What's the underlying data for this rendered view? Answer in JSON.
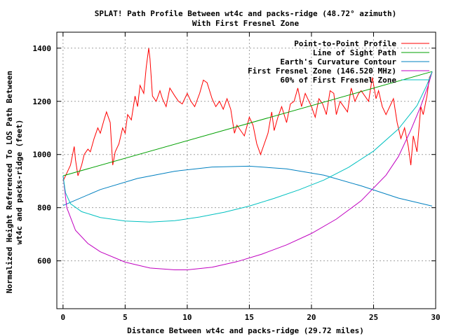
{
  "chart_data": {
    "type": "line",
    "title": "SPLAT! Path Profile Between wt4c and packs-ridge (48.72° azimuth)",
    "subtitle": "With First Fresnel Zone",
    "xlabel": "Distance Between wt4c and packs-ridge (29.72 miles)",
    "ylabel_line1": "Normalized Height Referenced To LOS Path Between",
    "ylabel_line2": "wt4c and packs-ridge (feet)",
    "xlim": [
      -0.5,
      30
    ],
    "ylim": [
      420,
      1460
    ],
    "x_ticks": [
      0,
      5,
      10,
      15,
      20,
      25,
      30
    ],
    "y_ticks": [
      600,
      800,
      1000,
      1200,
      1400
    ],
    "grid": true,
    "legend_position": "top-right",
    "series": [
      {
        "name": "Point-to-Point Profile",
        "color": "#ff0000",
        "x": [
          0,
          0.3,
          0.6,
          0.9,
          1.0,
          1.2,
          1.5,
          1.7,
          2.0,
          2.2,
          2.5,
          2.8,
          3.0,
          3.3,
          3.5,
          3.8,
          4.0,
          4.2,
          4.5,
          4.8,
          5.0,
          5.2,
          5.5,
          5.8,
          6.0,
          6.2,
          6.5,
          6.7,
          6.9,
          7.0,
          7.2,
          7.5,
          7.8,
          8.0,
          8.3,
          8.6,
          9.0,
          9.3,
          9.6,
          10.0,
          10.3,
          10.6,
          11.0,
          11.3,
          11.6,
          12.0,
          12.3,
          12.6,
          12.9,
          13.2,
          13.5,
          13.8,
          14.0,
          14.3,
          14.6,
          15.0,
          15.3,
          15.6,
          15.9,
          16.2,
          16.5,
          16.8,
          17.0,
          17.3,
          17.6,
          18.0,
          18.3,
          18.6,
          18.9,
          19.2,
          19.5,
          19.8,
          20.0,
          20.3,
          20.6,
          20.9,
          21.2,
          21.5,
          21.8,
          22.0,
          22.3,
          22.6,
          22.9,
          23.2,
          23.5,
          23.8,
          24.0,
          24.3,
          24.6,
          24.9,
          25.2,
          25.4,
          25.7,
          26.0,
          26.3,
          26.6,
          26.9,
          27.2,
          27.5,
          27.8,
          28.0,
          28.2,
          28.5,
          28.8,
          29.0,
          29.3,
          29.5,
          29.72
        ],
        "y": [
          900,
          930,
          960,
          1030,
          980,
          920,
          960,
          1000,
          1020,
          1010,
          1060,
          1100,
          1080,
          1130,
          1160,
          1120,
          960,
          1010,
          1040,
          1100,
          1080,
          1150,
          1130,
          1220,
          1180,
          1260,
          1230,
          1330,
          1400,
          1360,
          1220,
          1200,
          1240,
          1210,
          1180,
          1250,
          1220,
          1200,
          1190,
          1230,
          1200,
          1180,
          1230,
          1280,
          1270,
          1210,
          1180,
          1200,
          1170,
          1210,
          1170,
          1080,
          1110,
          1090,
          1070,
          1140,
          1110,
          1040,
          1000,
          1040,
          1080,
          1160,
          1090,
          1140,
          1180,
          1120,
          1190,
          1200,
          1250,
          1180,
          1230,
          1200,
          1180,
          1140,
          1210,
          1190,
          1150,
          1240,
          1230,
          1150,
          1200,
          1180,
          1160,
          1250,
          1200,
          1230,
          1240,
          1220,
          1200,
          1290,
          1210,
          1240,
          1180,
          1150,
          1180,
          1210,
          1120,
          1060,
          1100,
          1030,
          960,
          1070,
          1010,
          1180,
          1150,
          1220,
          1290,
          1310
        ]
      },
      {
        "name": "Line of Sight Path",
        "color": "#00a000",
        "x": [
          0,
          29.72
        ],
        "y": [
          920,
          1312
        ]
      },
      {
        "name": "Earth's Curvature Contour",
        "color": "#0080c0",
        "x": [
          0,
          3,
          6,
          9,
          12,
          15,
          18,
          21,
          24,
          27,
          29.72
        ],
        "y": [
          808,
          868,
          910,
          937,
          953,
          956,
          946,
          922,
          882,
          836,
          806
        ]
      },
      {
        "name": "First Fresnel Zone (146.520 MHz)",
        "color": "#c000c0",
        "x": [
          0,
          0.3,
          1,
          2,
          3,
          5,
          7,
          9,
          10,
          12,
          14,
          16,
          18,
          20,
          22,
          24,
          26,
          27,
          28,
          28.8,
          29.4,
          29.72
        ],
        "y": [
          920,
          800,
          715,
          665,
          634,
          595,
          573,
          566,
          566,
          576,
          597,
          625,
          660,
          703,
          757,
          826,
          922,
          992,
          1092,
          1182,
          1260,
          1312
        ]
      },
      {
        "name": "60% of First Fresnel Zone",
        "color": "#00c0c0",
        "x": [
          0,
          0.2,
          0.6,
          1.5,
          3,
          5,
          7,
          9,
          11,
          13,
          15,
          17,
          19,
          21,
          23,
          25,
          27,
          28.5,
          29.3,
          29.72
        ],
        "y": [
          920,
          856,
          815,
          785,
          763,
          750,
          746,
          751,
          765,
          783,
          806,
          835,
          867,
          904,
          952,
          1013,
          1096,
          1184,
          1262,
          1312
        ]
      }
    ]
  }
}
